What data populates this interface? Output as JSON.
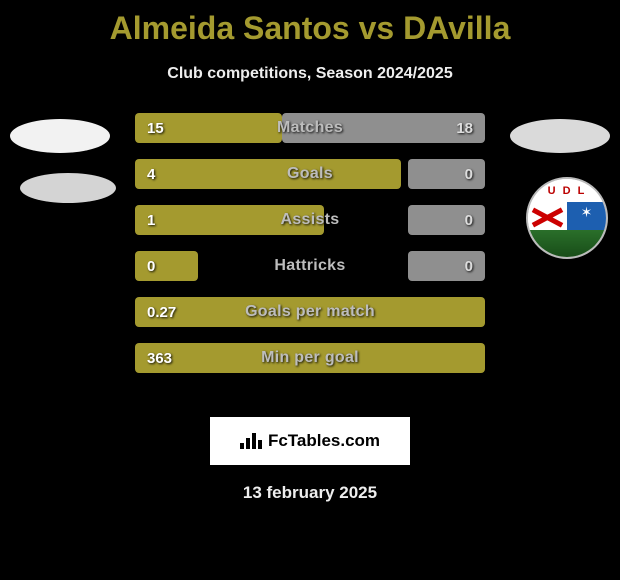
{
  "title": "Almeida Santos vs DAvilla",
  "title_color": "#a49a2f",
  "subtitle": "Club competitions, Season 2024/2025",
  "bar_color": "#a49a2f",
  "right_stub_color": "#8f8f8f",
  "crest_letters": "U D L",
  "rows": [
    {
      "label": "Matches",
      "left": "15",
      "right": "18",
      "left_pct": 42,
      "right_pct": 58,
      "left_full": true
    },
    {
      "label": "Goals",
      "left": "4",
      "right": "0",
      "left_pct": 76,
      "right_pct": 22,
      "left_full": false
    },
    {
      "label": "Assists",
      "left": "1",
      "right": "0",
      "left_pct": 54,
      "right_pct": 22,
      "left_full": false
    },
    {
      "label": "Hattricks",
      "left": "0",
      "right": "0",
      "left_pct": 18,
      "right_pct": 22,
      "left_full": false
    },
    {
      "label": "Goals per match",
      "left": "0.27",
      "right": "",
      "left_pct": 100,
      "right_pct": 0,
      "left_full": true
    },
    {
      "label": "Min per goal",
      "left": "363",
      "right": "",
      "left_pct": 100,
      "right_pct": 0,
      "left_full": true
    }
  ],
  "footer_brand": "FcTables.com",
  "date": "13 february 2025"
}
